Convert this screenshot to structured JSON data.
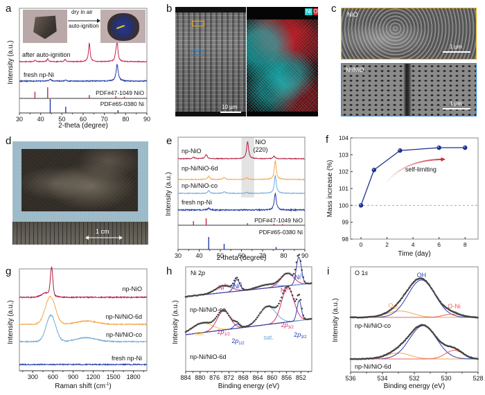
{
  "figure": {
    "panel_letters": [
      "a",
      "b",
      "c",
      "d",
      "e",
      "f",
      "g",
      "h",
      "i"
    ]
  },
  "panel_a": {
    "inset_arrow_top": "dry in air",
    "inset_arrow_bottom": "auto-ignition",
    "curve_labels": [
      "after auto-ignition",
      "fresh np-Ni"
    ],
    "ref_labels": [
      "PDF#47-1049 NiO",
      "PDF#65-0380 Ni"
    ],
    "xlabel": "2-theta (degree)",
    "ylabel": "Intensity (a.u.)",
    "xticks": [
      "30",
      "40",
      "50",
      "60",
      "70",
      "80",
      "90"
    ]
  },
  "panel_b": {
    "legend_ni": "Ni",
    "legend_o": "O",
    "scalebar": "10 µm",
    "colors": {
      "ni": "#19d2d2",
      "o": "#e8202a",
      "yellow_box": "#f0b21a",
      "blue_box": "#2f86d6"
    }
  },
  "panel_c": {
    "top_label": "NiO",
    "bottom_label": "Ni/NiO",
    "scalebar_top": "1 µm",
    "scalebar_bottom": "1 µm",
    "colors": {
      "top_border": "#f0b21a",
      "bottom_border": "#2f86d6"
    }
  },
  "panel_d": {
    "scalebar": "1 cm"
  },
  "panel_e": {
    "curve_labels": [
      "np-NiO",
      "np-Ni/NiO-6d",
      "np-Ni/NiO-co",
      "fresh np-Ni"
    ],
    "highlight_label_line1": "NiO",
    "highlight_label_line2": "(220)",
    "ref_labels": [
      "PDF#47-1049 NiO",
      "PDF#65-0380 Ni"
    ],
    "xlabel": "2-theta (degree)",
    "ylabel": "Intensity (a.u.)",
    "xticks": [
      "30",
      "40",
      "50",
      "60",
      "70",
      "80",
      "90"
    ]
  },
  "panel_g": {
    "curve_labels": [
      "np-NiO",
      "np-Ni/NiO-6d",
      "np-Ni/NiO-co",
      "fresh np-Ni"
    ],
    "xlabel": "Raman shift (cm",
    "xlabel_sup": "-1",
    "xlabel_end": ")",
    "ylabel": "Intensity (a.u.)",
    "xticks": [
      "300",
      "600",
      "900",
      "1200",
      "1500",
      "1800"
    ]
  },
  "panel_h": {
    "title": "Ni 2p",
    "curve_labels": [
      "np-Ni/NiO-co",
      "np-Ni/NiO-6d"
    ],
    "peak_labels": [
      "Ni2+",
      "Ni0",
      "Ni2+",
      "Ni0",
      "sat.",
      "2p1/2",
      "2p1/2",
      "sat.",
      "2p3/2",
      "2p3/2"
    ],
    "xlabel": "Binding energy (eV)",
    "ylabel": "Intensity (a.u.)",
    "xticks": [
      "884",
      "880",
      "876",
      "872",
      "868",
      "864",
      "860",
      "856",
      "852"
    ]
  },
  "panel_i": {
    "title": "O 1s",
    "curve_labels": [
      "np-Ni/NiO-co",
      "np-Ni/NiO-6d"
    ],
    "peak_labels": [
      "OH",
      "Osur",
      "O-Ni"
    ],
    "xlabel": "Binding energy (eV)",
    "ylabel": "Intensity (a.u.)",
    "xticks": [
      "536",
      "534",
      "532",
      "530",
      "528"
    ]
  },
  "chart_data": [
    {
      "id": "a",
      "type": "line",
      "title": "",
      "xlabel": "2-theta (degree)",
      "ylabel": "Intensity (a.u.)",
      "xlim": [
        30,
        90
      ],
      "series": [
        {
          "name": "after auto-ignition",
          "color": "#c8204e",
          "peaks": [
            [
              37.3,
              0.08
            ],
            [
              43.3,
              0.15
            ],
            [
              51.5,
              0.12
            ],
            [
              62.9,
              1.0
            ],
            [
              75.4,
              0.3
            ],
            [
              76.0,
              1.0
            ]
          ]
        },
        {
          "name": "fresh np-Ni",
          "color": "#1f3aa6",
          "peaks": [
            [
              44.5,
              0.12
            ],
            [
              51.8,
              0.05
            ],
            [
              76.0,
              1.0
            ]
          ]
        }
      ],
      "reference_lines": [
        {
          "name": "PDF#47-1049 NiO",
          "color": "#c8204e",
          "positions": [
            37.3,
            43.3,
            62.9,
            75.4,
            79.4
          ],
          "heights": [
            0.6,
            1.0,
            0.3,
            0.2,
            0.15
          ]
        },
        {
          "name": "PDF#65-0380 Ni",
          "color": "#1f3aa6",
          "positions": [
            44.5,
            51.8,
            76.4
          ],
          "heights": [
            1.0,
            0.45,
            0.2
          ]
        }
      ]
    },
    {
      "id": "e",
      "type": "line",
      "xlabel": "2-theta (degree)",
      "ylabel": "Intensity (a.u.)",
      "xlim": [
        30,
        90
      ],
      "highlight_region": [
        60,
        66
      ],
      "series": [
        {
          "name": "np-NiO",
          "color": "#b2183e",
          "peaks": [
            [
              37.3,
              0.08
            ],
            [
              43.3,
              0.25
            ],
            [
              62.9,
              1.0
            ],
            [
              75.4,
              0.15
            ]
          ]
        },
        {
          "name": "np-Ni/NiO-6d",
          "color": "#f5a54a",
          "peaks": [
            [
              44.5,
              0.18
            ],
            [
              51.8,
              0.12
            ],
            [
              62.5,
              0.1
            ],
            [
              76.0,
              1.0
            ]
          ]
        },
        {
          "name": "np-Ni/NiO-co",
          "color": "#6ea8d8",
          "peaks": [
            [
              44.5,
              0.15
            ],
            [
              51.8,
              0.1
            ],
            [
              62.5,
              0.05
            ],
            [
              76.0,
              1.0
            ]
          ]
        },
        {
          "name": "fresh np-Ni",
          "color": "#1f3aa6",
          "peaks": [
            [
              44.5,
              0.12
            ],
            [
              76.0,
              1.0
            ]
          ]
        }
      ],
      "reference_lines": [
        {
          "name": "PDF#47-1049 NiO",
          "color": "#c8204e",
          "positions": [
            37.3,
            43.3,
            62.9,
            75.4,
            79.4
          ],
          "heights": [
            0.6,
            1.0,
            0.3,
            0.2,
            0.15
          ]
        },
        {
          "name": "PDF#65-0380 Ni",
          "color": "#1f3aa6",
          "positions": [
            44.5,
            51.8,
            76.4
          ],
          "heights": [
            1.0,
            0.45,
            0.2
          ]
        }
      ]
    },
    {
      "id": "f",
      "type": "line",
      "xlabel": "Time (day)",
      "ylabel": "Mass increase (%)",
      "xlim": [
        -0.8,
        9
      ],
      "ylim": [
        98,
        104
      ],
      "xticks": [
        0,
        2,
        4,
        6,
        8
      ],
      "yticks": [
        98,
        99,
        100,
        101,
        102,
        103,
        104
      ],
      "reference_y": 100,
      "annotation": "self-limiting",
      "series": [
        {
          "name": "mass increase",
          "color": "#1a2f8a",
          "x": [
            0,
            1,
            3,
            6,
            8
          ],
          "y": [
            100.0,
            102.1,
            103.25,
            103.42,
            103.42
          ]
        }
      ]
    },
    {
      "id": "g",
      "type": "line",
      "xlabel": "Raman shift (cm-1)",
      "ylabel": "Intensity (a.u.)",
      "xlim": [
        100,
        2000
      ],
      "series": [
        {
          "name": "np-NiO",
          "color": "#b2183e",
          "peaks": [
            [
              580,
              1.0,
              18
            ],
            [
              520,
              0.18,
              80
            ]
          ]
        },
        {
          "name": "np-Ni/NiO-6d",
          "color": "#f5a54a",
          "peaks": [
            [
              560,
              1.0,
              75
            ],
            [
              1100,
              0.12,
              150
            ]
          ]
        },
        {
          "name": "np-Ni/NiO-co",
          "color": "#6ea8d8",
          "peaks": [
            [
              570,
              1.0,
              70
            ],
            [
              1100,
              0.15,
              150
            ]
          ]
        },
        {
          "name": "fresh np-Ni",
          "color": "#1f3aa6",
          "peaks": []
        }
      ]
    },
    {
      "id": "h",
      "type": "line",
      "title": "Ni 2p",
      "xlabel": "Binding energy (eV)",
      "ylabel": "Intensity (a.u.)",
      "xlim": [
        884,
        849
      ],
      "series": [
        {
          "name": "np-Ni/NiO-co",
          "components": [
            {
              "label": "Ni2+",
              "color": "#d2336a",
              "center": 873.5,
              "height": 0.25,
              "width": 2.2
            },
            {
              "label": "Ni0",
              "color": "#2c3fb0",
              "center": 869.8,
              "height": 0.42,
              "width": 0.8
            },
            {
              "label": "sat.",
              "color": "#6ea8d8",
              "center": 861.5,
              "height": 0.12,
              "width": 2.5
            },
            {
              "label": "Ni2+",
              "color": "#d2336a",
              "center": 855.8,
              "height": 0.45,
              "width": 1.8
            },
            {
              "label": "Ni0",
              "color": "#2c3fb0",
              "center": 852.6,
              "height": 1.0,
              "width": 0.7
            }
          ]
        },
        {
          "name": "np-Ni/NiO-6d",
          "components": [
            {
              "label": "sat.",
              "color": "#f2c24a",
              "center": 879.5,
              "height": 0.28,
              "width": 2.8
            },
            {
              "label": "2p1/2",
              "color": "#d2336a",
              "center": 873.5,
              "height": 0.55,
              "width": 1.8
            },
            {
              "label": "2p1/2",
              "color": "#2c3fb0",
              "center": 869.8,
              "height": 0.12,
              "width": 0.8
            },
            {
              "label": "sat.",
              "color": "#6ea8d8",
              "center": 861.3,
              "height": 0.52,
              "width": 2.3
            },
            {
              "label": "2p3/2",
              "color": "#d2336a",
              "center": 855.7,
              "height": 1.0,
              "width": 1.7
            },
            {
              "label": "2p3/2",
              "color": "#2c3fb0",
              "center": 852.5,
              "height": 0.58,
              "width": 0.6
            }
          ]
        }
      ]
    },
    {
      "id": "i",
      "type": "line",
      "title": "O 1s",
      "xlabel": "Binding energy (eV)",
      "ylabel": "Intensity (a.u.)",
      "xlim": [
        536,
        528
      ],
      "series": [
        {
          "name": "np-Ni/NiO-co",
          "components": [
            {
              "label": "Osur",
              "color": "#f5a54a",
              "center": 532.9,
              "height": 0.17,
              "width": 0.8
            },
            {
              "label": "OH",
              "color": "#2c3fb0",
              "center": 531.55,
              "height": 1.0,
              "width": 0.85
            },
            {
              "label": "O-Ni",
              "color": "#e8605a",
              "center": 529.6,
              "height": 0.09,
              "width": 0.55
            }
          ]
        },
        {
          "name": "np-Ni/NiO-6d",
          "components": [
            {
              "label": "Osur",
              "color": "#f5a54a",
              "center": 533.0,
              "height": 0.18,
              "width": 0.75
            },
            {
              "label": "OH",
              "color": "#2c3fb0",
              "center": 531.45,
              "height": 1.0,
              "width": 0.85
            },
            {
              "label": "O-Ni",
              "color": "#e8605a",
              "center": 529.5,
              "height": 0.26,
              "width": 0.55
            }
          ]
        }
      ]
    }
  ]
}
